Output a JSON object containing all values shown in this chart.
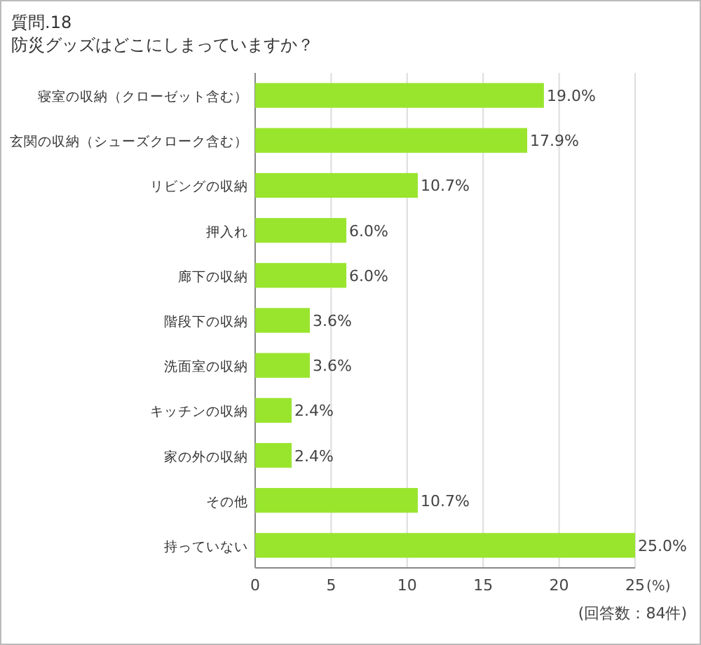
{
  "chart_data": {
    "type": "bar",
    "orientation": "horizontal",
    "title": "質問.18",
    "subtitle": "防災グッズはどこにしまっていますか？",
    "categories": [
      "寝室の収納（クローゼット含む）",
      "玄関の収納（シューズクローク含む）",
      "リビングの収納",
      "押入れ",
      "廊下の収納",
      "階段下の収納",
      "洗面室の収納",
      "キッチンの収納",
      "家の外の収納",
      "その他",
      "持っていない"
    ],
    "values": [
      19.0,
      17.9,
      10.7,
      6.0,
      6.0,
      3.6,
      3.6,
      2.4,
      2.4,
      10.7,
      25.0
    ],
    "value_labels": [
      "19.0%",
      "17.9%",
      "10.7%",
      "6.0%",
      "6.0%",
      "3.6%",
      "3.6%",
      "2.4%",
      "2.4%",
      "10.7%",
      "25.0%"
    ],
    "color": "#99e52e",
    "xlim": [
      0,
      25
    ],
    "xticks": [
      0,
      5,
      10,
      15,
      20,
      25
    ],
    "xlabel": "(%)",
    "grid": "x",
    "annotations": [
      "(回答数：84件)"
    ]
  }
}
